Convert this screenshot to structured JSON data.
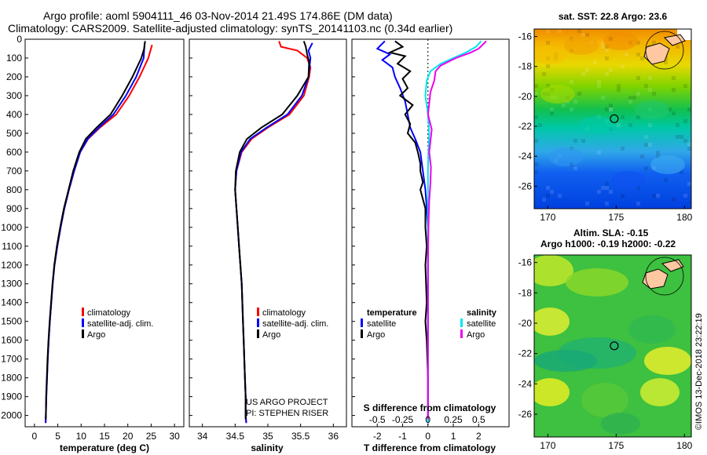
{
  "title": {
    "line1": "Argo profile: aoml 5904111_46 03-Nov-2014 21.49S 174.86E (DM data)",
    "line2": "Climatology: CARS2009. Satellite-adjusted climatology: synTS_20141103.nc (0.34d earlier)"
  },
  "colors": {
    "climatology": "#ff0000",
    "satellite": "#0000ff",
    "argo": "#000000",
    "s_sat": "#00e5ee",
    "s_argo": "#ee00ee"
  },
  "pressure_axis": {
    "ticks": [
      0,
      100,
      200,
      300,
      400,
      500,
      600,
      700,
      800,
      900,
      1000,
      1100,
      1200,
      1300,
      1400,
      1500,
      1600,
      1700,
      1800,
      1900,
      2000
    ],
    "ylim": [
      0,
      2060
    ]
  },
  "chart_data": [
    {
      "id": "temperature",
      "type": "line",
      "xlabel": "temperature (deg C)",
      "xlim": [
        -2,
        32
      ],
      "xticks": [
        0,
        5,
        10,
        15,
        20,
        25,
        30
      ],
      "legend": [
        "climatology",
        "satellite-adj. clim.",
        "Argo"
      ],
      "series": [
        {
          "name": "climatology",
          "color": "#ff0000",
          "points": [
            [
              25.2,
              30
            ],
            [
              24.4,
              100
            ],
            [
              22.5,
              200
            ],
            [
              20.3,
              300
            ],
            [
              17.5,
              400
            ],
            [
              14.0,
              470
            ],
            [
              11.5,
              530
            ],
            [
              9.8,
              600
            ],
            [
              8.5,
              700
            ],
            [
              7.4,
              800
            ],
            [
              6.4,
              900
            ],
            [
              5.6,
              1000
            ],
            [
              4.9,
              1100
            ],
            [
              4.3,
              1200
            ],
            [
              3.9,
              1300
            ],
            [
              3.6,
              1400
            ],
            [
              3.3,
              1500
            ],
            [
              3.05,
              1600
            ],
            [
              2.85,
              1700
            ],
            [
              2.7,
              1800
            ],
            [
              2.55,
              1900
            ],
            [
              2.45,
              2000
            ],
            [
              2.4,
              2040
            ]
          ]
        },
        {
          "name": "satellite-adj. clim.",
          "color": "#0000ff",
          "points": [
            [
              23.6,
              20
            ],
            [
              23.4,
              100
            ],
            [
              21.8,
              200
            ],
            [
              19.6,
              300
            ],
            [
              16.9,
              400
            ],
            [
              13.8,
              470
            ],
            [
              11.4,
              530
            ],
            [
              9.8,
              600
            ],
            [
              8.5,
              700
            ],
            [
              7.4,
              800
            ],
            [
              6.4,
              900
            ],
            [
              5.6,
              1000
            ],
            [
              4.9,
              1100
            ],
            [
              4.3,
              1200
            ],
            [
              3.9,
              1300
            ],
            [
              3.6,
              1400
            ],
            [
              3.3,
              1500
            ],
            [
              3.05,
              1600
            ],
            [
              2.85,
              1700
            ],
            [
              2.7,
              1800
            ],
            [
              2.55,
              1900
            ],
            [
              2.45,
              2000
            ],
            [
              2.4,
              2040
            ]
          ]
        },
        {
          "name": "Argo",
          "color": "#000000",
          "points": [
            [
              23.7,
              10
            ],
            [
              23.5,
              50
            ],
            [
              22.9,
              100
            ],
            [
              21.0,
              200
            ],
            [
              18.8,
              300
            ],
            [
              16.3,
              400
            ],
            [
              13.3,
              470
            ],
            [
              11.0,
              530
            ],
            [
              9.6,
              600
            ],
            [
              8.3,
              700
            ],
            [
              7.3,
              800
            ],
            [
              6.3,
              900
            ],
            [
              5.5,
              1000
            ],
            [
              4.8,
              1100
            ],
            [
              4.25,
              1200
            ],
            [
              3.85,
              1300
            ],
            [
              3.55,
              1400
            ],
            [
              3.25,
              1500
            ],
            [
              3.0,
              1600
            ],
            [
              2.8,
              1700
            ],
            [
              2.65,
              1800
            ],
            [
              2.5,
              1900
            ],
            [
              2.45,
              2000
            ],
            [
              2.4,
              2020
            ]
          ]
        }
      ]
    },
    {
      "id": "salinity",
      "type": "line",
      "xlabel": "salinity",
      "xlim": [
        33.8,
        36.2
      ],
      "xticks": [
        34,
        34.5,
        35,
        35.5,
        36
      ],
      "xticklabels": [
        "34",
        "34.5",
        "35",
        "35.5",
        "36"
      ],
      "legend": [
        "climatology",
        "satellite-adj. clim.",
        "Argo"
      ],
      "credit1": "US ARGO PROJECT",
      "credit2": "PI: STEPHEN RISER",
      "series": [
        {
          "name": "climatology",
          "color": "#ff0000",
          "points": [
            [
              35.17,
              10
            ],
            [
              35.2,
              40
            ],
            [
              35.45,
              60
            ],
            [
              35.6,
              100
            ],
            [
              35.65,
              150
            ],
            [
              35.63,
              200
            ],
            [
              35.55,
              300
            ],
            [
              35.33,
              400
            ],
            [
              35.0,
              470
            ],
            [
              34.75,
              530
            ],
            [
              34.6,
              600
            ],
            [
              34.52,
              700
            ],
            [
              34.5,
              800
            ],
            [
              34.52,
              900
            ],
            [
              34.54,
              1000
            ],
            [
              34.56,
              1100
            ],
            [
              34.58,
              1200
            ],
            [
              34.6,
              1300
            ],
            [
              34.61,
              1400
            ],
            [
              34.62,
              1500
            ],
            [
              34.63,
              1600
            ],
            [
              34.64,
              1700
            ],
            [
              34.65,
              1800
            ],
            [
              34.66,
              1900
            ],
            [
              34.66,
              2000
            ],
            [
              34.67,
              2040
            ]
          ]
        },
        {
          "name": "satellite-adj. clim.",
          "color": "#0000ff",
          "points": [
            [
              35.68,
              20
            ],
            [
              35.62,
              60
            ],
            [
              35.65,
              100
            ],
            [
              35.62,
              200
            ],
            [
              35.52,
              300
            ],
            [
              35.3,
              400
            ],
            [
              34.98,
              470
            ],
            [
              34.73,
              530
            ],
            [
              34.59,
              600
            ],
            [
              34.52,
              700
            ],
            [
              34.5,
              800
            ],
            [
              34.52,
              900
            ],
            [
              34.54,
              1000
            ],
            [
              34.56,
              1100
            ],
            [
              34.58,
              1200
            ],
            [
              34.6,
              1300
            ],
            [
              34.61,
              1400
            ],
            [
              34.62,
              1500
            ],
            [
              34.63,
              1600
            ],
            [
              34.64,
              1700
            ],
            [
              34.65,
              1800
            ],
            [
              34.66,
              1900
            ],
            [
              34.66,
              2000
            ],
            [
              34.67,
              2040
            ]
          ]
        },
        {
          "name": "Argo",
          "color": "#000000",
          "points": [
            [
              35.55,
              10
            ],
            [
              35.58,
              40
            ],
            [
              35.6,
              80
            ],
            [
              35.63,
              120
            ],
            [
              35.62,
              200
            ],
            [
              35.45,
              300
            ],
            [
              35.22,
              400
            ],
            [
              34.9,
              470
            ],
            [
              34.68,
              530
            ],
            [
              34.57,
              600
            ],
            [
              34.51,
              700
            ],
            [
              34.5,
              800
            ],
            [
              34.52,
              900
            ],
            [
              34.54,
              1000
            ],
            [
              34.56,
              1100
            ],
            [
              34.58,
              1200
            ],
            [
              34.6,
              1300
            ],
            [
              34.61,
              1400
            ],
            [
              34.62,
              1500
            ],
            [
              34.63,
              1600
            ],
            [
              34.64,
              1700
            ],
            [
              34.65,
              1800
            ],
            [
              34.66,
              1900
            ],
            [
              34.66,
              2000
            ],
            [
              34.66,
              2020
            ]
          ]
        }
      ]
    },
    {
      "id": "differences",
      "type": "line",
      "xlabel": "T difference from climatology",
      "xlabel2": "S difference from climatology",
      "xlim": [
        -3,
        3.2
      ],
      "xticks": [
        -2,
        -1,
        0,
        1,
        2
      ],
      "sticks": [
        -0.5,
        -0.25,
        0,
        0.25,
        0.5
      ],
      "sticklabels": [
        "-0.5",
        "-0.25",
        "0",
        "0.25",
        "0.5"
      ],
      "legend_t_head": "temperature",
      "legend_s_head": "salinity",
      "legend_t": [
        "satellite",
        "Argo"
      ],
      "legend_s": [
        "satellite",
        "Argo"
      ],
      "series": [
        {
          "name": "T satellite",
          "color": "#0000ff",
          "points": [
            [
              -1.7,
              10
            ],
            [
              -2.0,
              50
            ],
            [
              -1.5,
              80
            ],
            [
              -1.8,
              110
            ],
            [
              -1.4,
              150
            ],
            [
              -1.3,
              200
            ],
            [
              -1.1,
              260
            ],
            [
              -0.9,
              330
            ],
            [
              -0.8,
              400
            ],
            [
              -0.7,
              470
            ],
            [
              -0.5,
              530
            ],
            [
              -0.3,
              600
            ],
            [
              -0.2,
              700
            ],
            [
              -0.1,
              800
            ],
            [
              -0.05,
              900
            ],
            [
              0,
              1000
            ],
            [
              0,
              1200
            ],
            [
              0,
              1400
            ],
            [
              0,
              1600
            ],
            [
              0,
              2040
            ]
          ]
        },
        {
          "name": "T Argo",
          "color": "#000000",
          "points": [
            [
              -1.3,
              10
            ],
            [
              -1.0,
              40
            ],
            [
              -1.5,
              70
            ],
            [
              -0.9,
              90
            ],
            [
              -1.2,
              130
            ],
            [
              -0.7,
              170
            ],
            [
              -1.0,
              210
            ],
            [
              -0.8,
              260
            ],
            [
              -1.1,
              300
            ],
            [
              -0.6,
              350
            ],
            [
              -0.9,
              400
            ],
            [
              -0.7,
              450
            ],
            [
              -0.8,
              500
            ],
            [
              -0.5,
              550
            ],
            [
              -0.4,
              600
            ],
            [
              -0.3,
              660
            ],
            [
              -0.3,
              700
            ],
            [
              -0.2,
              760
            ],
            [
              -0.3,
              800
            ],
            [
              -0.2,
              850
            ],
            [
              -0.1,
              900
            ],
            [
              -0.1,
              1000
            ],
            [
              -0.05,
              1100
            ],
            [
              -0.1,
              1200
            ],
            [
              -0.05,
              1400
            ],
            [
              -0.1,
              1500
            ],
            [
              -0.05,
              1600
            ],
            [
              0,
              1800
            ],
            [
              0,
              2020
            ]
          ]
        },
        {
          "name": "S satellite",
          "color": "#00e5ee",
          "points": [
            [
              2.1,
              10
            ],
            [
              1.9,
              40
            ],
            [
              1.5,
              70
            ],
            [
              1.0,
              100
            ],
            [
              0.5,
              130
            ],
            [
              0.1,
              170
            ],
            [
              -0.05,
              220
            ],
            [
              -0.1,
              300
            ],
            [
              0,
              400
            ],
            [
              0.05,
              500
            ],
            [
              0.02,
              600
            ],
            [
              0.0,
              700
            ],
            [
              0,
              800
            ],
            [
              0,
              1000
            ],
            [
              0,
              1500
            ],
            [
              0,
              2040
            ]
          ]
        },
        {
          "name": "S Argo",
          "color": "#ee00ee",
          "points": [
            [
              2.3,
              10
            ],
            [
              2.0,
              50
            ],
            [
              1.7,
              70
            ],
            [
              1.1,
              100
            ],
            [
              0.5,
              140
            ],
            [
              0.3,
              170
            ],
            [
              0.25,
              220
            ],
            [
              0.1,
              280
            ],
            [
              0.05,
              340
            ],
            [
              0.0,
              400
            ],
            [
              0.15,
              480
            ],
            [
              0.1,
              540
            ],
            [
              0.05,
              600
            ],
            [
              0.12,
              680
            ],
            [
              0.1,
              760
            ],
            [
              0.05,
              860
            ],
            [
              0.02,
              1000
            ],
            [
              0,
              1200
            ],
            [
              0,
              1600
            ],
            [
              0,
              2020
            ]
          ]
        }
      ]
    },
    {
      "id": "sst_map",
      "type": "heatmap",
      "title": "sat. SST: 22.8 Argo: 23.6",
      "xlim": [
        169,
        180.5
      ],
      "ylim": [
        -27.5,
        -15.5
      ],
      "xticks": [
        170,
        175,
        180
      ],
      "yticks": [
        -16,
        -18,
        -20,
        -22,
        -24,
        -26
      ],
      "marker": [
        174.86,
        -21.49
      ]
    },
    {
      "id": "sla_map",
      "type": "heatmap",
      "title1": "Altim. SLA: -0.15",
      "title2": "Argo h1000: -0.19 h2000: -0.22",
      "xlim": [
        169,
        180.5
      ],
      "ylim": [
        -27.5,
        -15.5
      ],
      "xticks": [
        170,
        175,
        180
      ],
      "yticks": [
        -16,
        -18,
        -20,
        -22,
        -24,
        -26
      ],
      "marker": [
        174.86,
        -21.49
      ]
    }
  ],
  "timestamp": "©IMOS 13-Dec-2018 23:22:19"
}
